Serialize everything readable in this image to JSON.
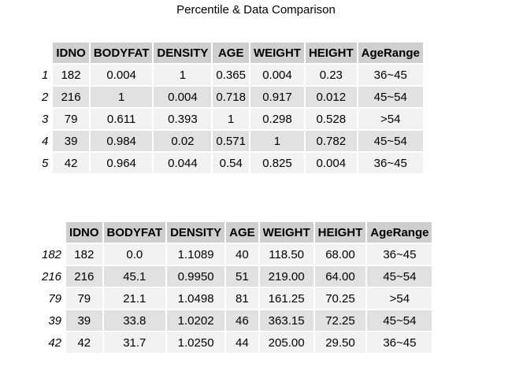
{
  "title": "Percentile & Data Comparison",
  "chart_data": [
    {
      "type": "table",
      "title": "Percentile & Data Comparison",
      "columns": [
        "IDNO",
        "BODYFAT",
        "DENSITY",
        "AGE",
        "WEIGHT",
        "HEIGHT",
        "AgeRange"
      ],
      "row_labels": [
        "1",
        "2",
        "3",
        "4",
        "5"
      ],
      "rows": [
        [
          "182",
          "0.004",
          "1",
          "0.365",
          "0.004",
          "0.23",
          "36~45"
        ],
        [
          "216",
          "1",
          "0.004",
          "0.718",
          "0.917",
          "0.012",
          "45~54"
        ],
        [
          "79",
          "0.611",
          "0.393",
          "1",
          "0.298",
          "0.528",
          ">54"
        ],
        [
          "39",
          "0.984",
          "0.02",
          "0.571",
          "1",
          "0.782",
          "45~54"
        ],
        [
          "42",
          "0.964",
          "0.044",
          "0.54",
          "0.825",
          "0.004",
          "36~45"
        ]
      ]
    },
    {
      "type": "table",
      "columns": [
        "IDNO",
        "BODYFAT",
        "DENSITY",
        "AGE",
        "WEIGHT",
        "HEIGHT",
        "AgeRange"
      ],
      "row_labels": [
        "182",
        "216",
        "79",
        "39",
        "42"
      ],
      "rows": [
        [
          "182",
          "0.0",
          "1.1089",
          "40",
          "118.50",
          "68.00",
          "36~45"
        ],
        [
          "216",
          "45.1",
          "0.9950",
          "51",
          "219.00",
          "64.00",
          "45~54"
        ],
        [
          "79",
          "21.1",
          "1.0498",
          "81",
          "161.25",
          "70.25",
          ">54"
        ],
        [
          "39",
          "33.8",
          "1.0202",
          "46",
          "363.15",
          "72.25",
          "45~54"
        ],
        [
          "42",
          "31.7",
          "1.0250",
          "44",
          "205.00",
          "29.50",
          "36~45"
        ]
      ]
    }
  ]
}
